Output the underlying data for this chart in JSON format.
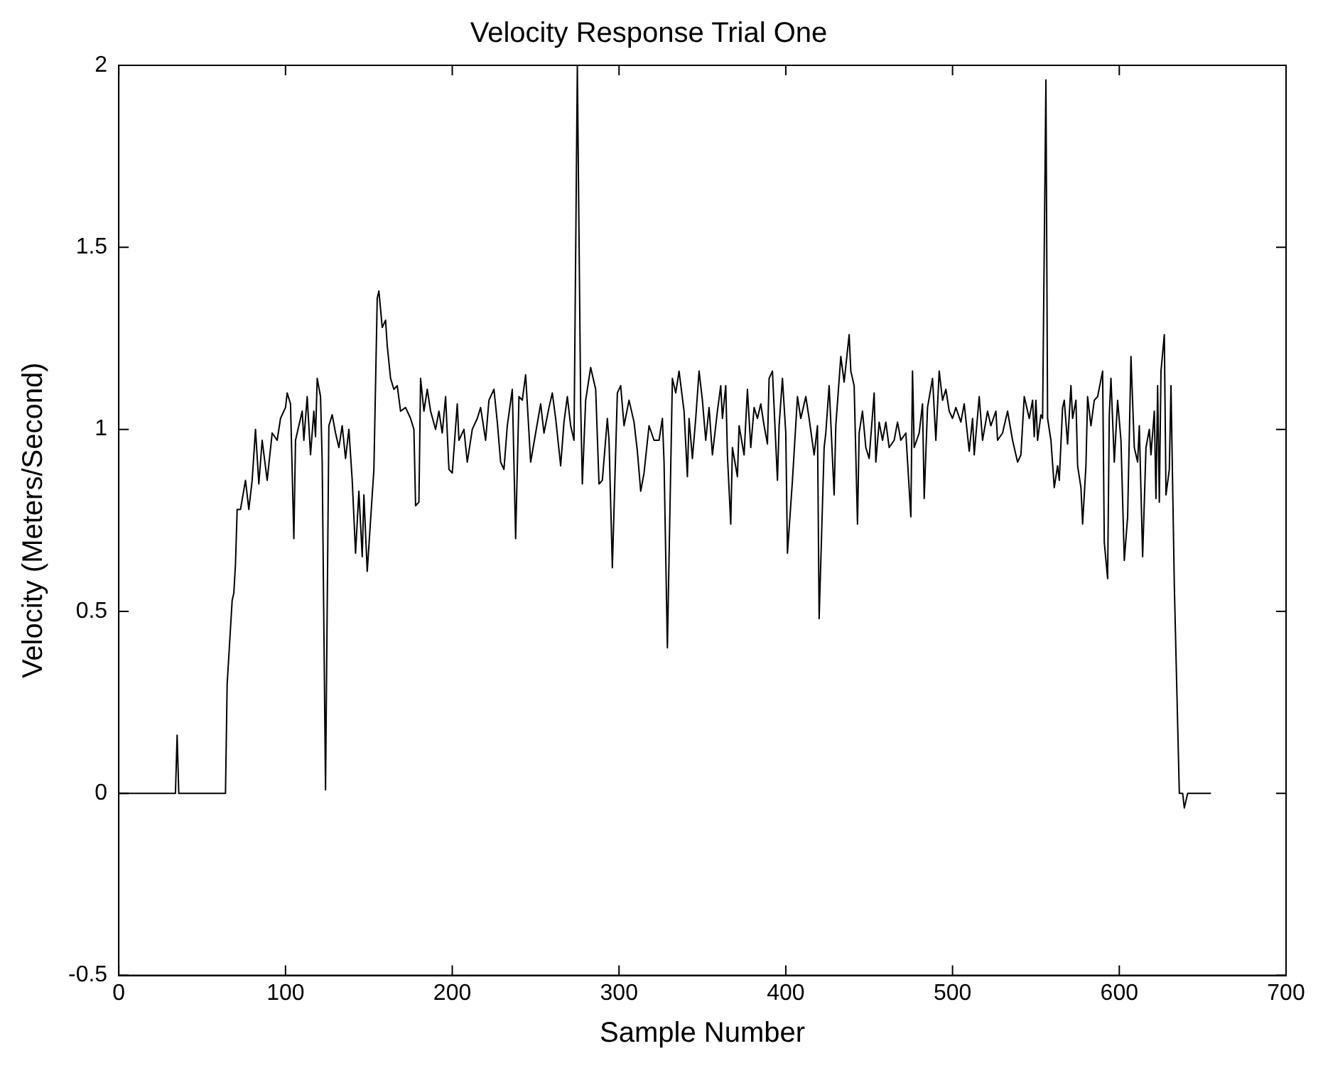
{
  "chart_data": {
    "type": "line",
    "title": "Velocity Response Trial One",
    "xlabel": "Sample Number",
    "ylabel": "Velocity (Meters/Second)",
    "x": [
      0,
      34,
      35,
      36,
      64,
      65,
      68,
      69,
      70,
      71,
      73,
      76,
      78,
      80,
      82,
      84,
      86,
      89,
      92,
      95,
      97,
      100,
      101,
      103,
      105,
      106,
      110,
      111,
      113,
      115,
      117,
      118,
      119,
      121,
      122,
      124,
      126,
      128,
      130,
      132,
      134,
      136,
      138,
      140,
      142,
      144,
      146,
      147,
      149,
      153,
      155,
      156,
      158,
      160,
      161,
      163,
      165,
      167,
      169,
      172,
      175,
      177,
      178,
      180,
      181,
      183,
      185,
      187,
      190,
      192,
      194,
      196,
      198,
      200,
      203,
      204,
      207,
      209,
      212,
      215,
      217,
      220,
      222,
      225,
      227,
      229,
      231,
      233,
      236,
      238,
      240,
      242,
      244,
      247,
      250,
      253,
      255,
      258,
      260,
      262,
      265,
      267,
      269,
      271,
      273,
      275,
      277,
      278,
      280,
      283,
      286,
      288,
      290,
      293,
      294,
      296,
      299,
      301,
      303,
      306,
      309,
      311,
      313,
      315,
      318,
      321,
      324,
      326,
      327,
      329,
      332,
      334,
      336,
      339,
      341,
      342,
      344,
      346,
      348,
      350,
      352,
      354,
      356,
      359,
      361,
      362,
      364,
      365,
      367,
      368,
      371,
      372,
      375,
      377,
      379,
      381,
      383,
      385,
      387,
      389,
      390,
      392,
      395,
      396,
      398,
      400,
      401,
      404,
      407,
      409,
      412,
      414,
      417,
      419,
      420,
      423,
      424,
      426,
      429,
      430,
      433,
      435,
      438,
      439,
      441,
      443,
      444,
      446,
      448,
      450,
      453,
      454,
      456,
      458,
      460,
      462,
      465,
      467,
      469,
      472,
      475,
      476,
      477,
      480,
      482,
      483,
      485,
      488,
      490,
      492,
      494,
      496,
      498,
      500,
      502,
      505,
      507,
      510,
      512,
      513,
      516,
      518,
      521,
      523,
      526,
      527,
      530,
      533,
      536,
      539,
      541,
      543,
      546,
      548,
      549,
      550,
      551,
      553,
      554,
      556,
      557,
      559,
      561,
      563,
      564,
      566,
      567,
      569,
      571,
      572,
      574,
      575,
      577,
      578,
      580,
      581,
      583,
      585,
      587,
      590,
      591,
      593,
      594,
      595,
      597,
      599,
      601,
      603,
      605,
      607,
      609,
      611,
      612,
      614,
      616,
      618,
      619,
      621,
      622,
      623,
      624,
      625,
      627,
      628,
      630,
      631,
      633,
      636,
      638,
      639,
      641,
      655
    ],
    "series": [
      {
        "color": "#000000",
        "values": [
          0,
          0,
          0.16,
          0,
          0,
          0.3,
          0.53,
          0.55,
          0.63,
          0.78,
          0.78,
          0.86,
          0.78,
          0.86,
          1.0,
          0.85,
          0.97,
          0.86,
          0.99,
          0.97,
          1.03,
          1.06,
          1.1,
          1.07,
          0.7,
          0.97,
          1.05,
          0.97,
          1.09,
          0.93,
          1.05,
          0.98,
          1.14,
          1.09,
          0.91,
          0.01,
          1.01,
          1.04,
          0.99,
          0.95,
          1.01,
          0.92,
          1.0,
          0.86,
          0.66,
          0.83,
          0.65,
          0.82,
          0.61,
          0.89,
          1.36,
          1.38,
          1.28,
          1.3,
          1.23,
          1.14,
          1.11,
          1.12,
          1.05,
          1.06,
          1.03,
          1.0,
          0.79,
          0.8,
          1.14,
          1.05,
          1.11,
          1.05,
          1.0,
          1.05,
          0.99,
          1.09,
          0.89,
          0.88,
          1.07,
          0.97,
          1.0,
          0.91,
          1.0,
          1.03,
          1.06,
          0.97,
          1.08,
          1.11,
          1.02,
          0.91,
          0.89,
          1.01,
          1.11,
          0.7,
          1.09,
          1.08,
          1.15,
          0.91,
          0.99,
          1.07,
          0.99,
          1.06,
          1.1,
          1.03,
          0.9,
          1.02,
          1.09,
          1.01,
          0.97,
          2.0,
          1.07,
          0.85,
          1.08,
          1.17,
          1.11,
          0.85,
          0.86,
          1.03,
          0.97,
          0.62,
          1.1,
          1.12,
          1.01,
          1.08,
          1.02,
          0.94,
          0.83,
          0.88,
          1.01,
          0.97,
          0.97,
          1.03,
          0.91,
          0.4,
          1.14,
          1.1,
          1.16,
          1.05,
          0.87,
          1.03,
          0.92,
          1.03,
          1.16,
          1.08,
          0.97,
          1.06,
          0.93,
          1.05,
          1.12,
          1.03,
          1.12,
          0.93,
          0.74,
          0.95,
          0.87,
          1.01,
          0.93,
          1.11,
          0.95,
          1.06,
          1.03,
          1.07,
          1.01,
          0.96,
          1.14,
          1.16,
          0.86,
          1.01,
          1.14,
          0.99,
          0.66,
          0.86,
          1.09,
          1.03,
          1.09,
          1.03,
          0.93,
          1.01,
          0.48,
          0.95,
          0.99,
          1.12,
          0.82,
          1.01,
          1.2,
          1.13,
          1.26,
          1.16,
          1.12,
          0.74,
          0.99,
          1.05,
          0.95,
          0.92,
          1.1,
          0.91,
          1.02,
          0.97,
          1.02,
          0.95,
          0.97,
          1.02,
          0.97,
          0.99,
          0.76,
          1.16,
          0.95,
          0.99,
          1.07,
          0.81,
          1.06,
          1.14,
          0.97,
          1.16,
          1.08,
          1.11,
          1.05,
          1.03,
          1.06,
          1.02,
          1.07,
          0.94,
          1.03,
          0.93,
          1.09,
          0.97,
          1.05,
          1.01,
          1.05,
          0.97,
          0.99,
          1.05,
          0.97,
          0.91,
          0.93,
          1.09,
          1.03,
          1.08,
          0.98,
          1.08,
          0.97,
          1.04,
          1.03,
          1.96,
          1.03,
          0.97,
          0.84,
          0.9,
          0.86,
          1.06,
          1.08,
          0.96,
          1.12,
          1.03,
          1.08,
          0.9,
          0.84,
          0.74,
          0.9,
          1.09,
          1.01,
          1.08,
          1.09,
          1.16,
          0.69,
          0.59,
          1.04,
          1.14,
          0.91,
          1.08,
          0.97,
          0.64,
          0.76,
          1.2,
          0.95,
          0.91,
          1.01,
          0.65,
          0.95,
          1.0,
          0.93,
          1.05,
          0.81,
          1.12,
          0.8,
          1.16,
          1.26,
          0.82,
          0.89,
          1.12,
          0.57,
          0,
          0,
          -0.04,
          0,
          0
        ]
      }
    ],
    "xlim": [
      0,
      700
    ],
    "xticks": [
      0,
      100,
      200,
      300,
      400,
      500,
      600,
      700
    ],
    "ylim": [
      -0.5,
      2
    ],
    "yticks": [
      -0.5,
      0,
      0.5,
      1,
      1.5,
      2
    ],
    "grid": false,
    "legend": false,
    "marker": "none",
    "line_style": "solid"
  }
}
